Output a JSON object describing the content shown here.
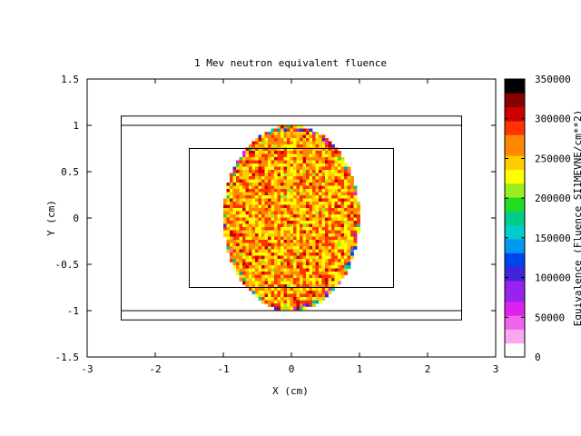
{
  "chart_data": {
    "type": "heatmap",
    "title": "1 Mev neutron equivalent fluence",
    "xlabel": "X (cm)",
    "ylabel": "Y (cm)",
    "xlim": [
      -3,
      3
    ],
    "ylim": [
      -1.5,
      1.5
    ],
    "x_ticks": [
      "-3",
      "-2",
      "-1",
      "0",
      "1",
      "2",
      "3"
    ],
    "x_tick_values": [
      -3,
      -2,
      -1,
      0,
      1,
      2,
      3
    ],
    "y_ticks": [
      "1.5",
      "1",
      "0.5",
      "0",
      "-0.5",
      "-1",
      "-1.5"
    ],
    "y_tick_values": [
      1.5,
      1,
      0.5,
      0,
      -0.5,
      -1,
      -1.5
    ],
    "heatmap_region": {
      "shape": "ellipse",
      "center": [
        0,
        0
      ],
      "x_radius": 1.0,
      "y_radius": 1.0,
      "typical_value_range": [
        220000,
        300000
      ],
      "edge_value_range": [
        50000,
        220000
      ]
    },
    "overlay_rectangles": [
      {
        "x": [
          -2.5,
          2.5
        ],
        "y": [
          -1.1,
          1.1
        ]
      },
      {
        "x": [
          -2.5,
          2.5
        ],
        "y": [
          -1.0,
          1.0
        ]
      },
      {
        "x": [
          -1.5,
          1.5
        ],
        "y": [
          -0.75,
          0.75
        ]
      }
    ],
    "colorbar": {
      "label": "Equivalence (Fluence SI1MEVNE/cm**2)",
      "range": [
        0,
        350000
      ],
      "ticks": [
        "350000",
        "300000",
        "250000",
        "200000",
        "150000",
        "100000",
        "50000",
        "0"
      ],
      "tick_values": [
        350000,
        300000,
        250000,
        200000,
        150000,
        100000,
        50000,
        0
      ],
      "colors": [
        "#ffffff",
        "#f7a8f0",
        "#ee66ee",
        "#dd22ee",
        "#9922ee",
        "#4422dd",
        "#0044ee",
        "#0099ee",
        "#00cccc",
        "#00cc88",
        "#22dd22",
        "#99ee22",
        "#ffff00",
        "#ffcc00",
        "#ff8800",
        "#ff3300",
        "#cc0000",
        "#880000",
        "#000000"
      ]
    },
    "grid": false,
    "legend": "none"
  }
}
